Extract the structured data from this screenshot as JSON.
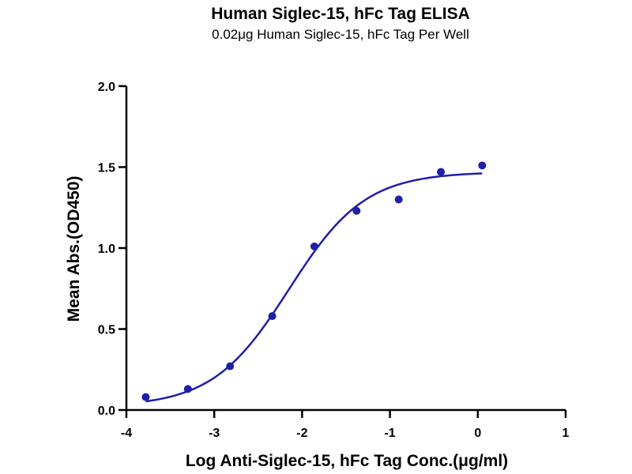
{
  "chart_data": {
    "type": "scatter",
    "title": "Human Siglec-15, hFc Tag ELISA",
    "subtitle": "0.02μg Human Siglec-15, hFc Tag Per Well",
    "xlabel": "Log Anti-Siglec-15, hFc Tag Conc.(μg/ml)",
    "ylabel": "Mean Abs.(OD450)",
    "xlim": [
      -4,
      1
    ],
    "ylim": [
      0,
      2
    ],
    "xticks": [
      -4,
      -3,
      -2,
      -1,
      0,
      1
    ],
    "xtick_labels": [
      "-4",
      "-3",
      "-2",
      "-1",
      "0",
      "1"
    ],
    "yticks": [
      0,
      0.5,
      1,
      1.5,
      2
    ],
    "ytick_labels": [
      "0.0",
      "0.5",
      "1.0",
      "1.5",
      "2.0"
    ],
    "grid": false,
    "legend": "none",
    "color": "#1f1fa8",
    "points": [
      {
        "x": -3.78,
        "y": 0.08
      },
      {
        "x": -3.3,
        "y": 0.13
      },
      {
        "x": -2.82,
        "y": 0.27
      },
      {
        "x": -2.34,
        "y": 0.58
      },
      {
        "x": -1.86,
        "y": 1.01
      },
      {
        "x": -1.38,
        "y": 1.23
      },
      {
        "x": -0.9,
        "y": 1.3
      },
      {
        "x": -0.42,
        "y": 1.47
      },
      {
        "x": 0.05,
        "y": 1.51
      }
    ],
    "fit_curve": {
      "model": "4PL",
      "bottom": 0.02,
      "top": 1.47,
      "log_ec50": -2.15,
      "hill_slope": 1.0,
      "x_range": [
        -3.78,
        0.05
      ]
    }
  }
}
